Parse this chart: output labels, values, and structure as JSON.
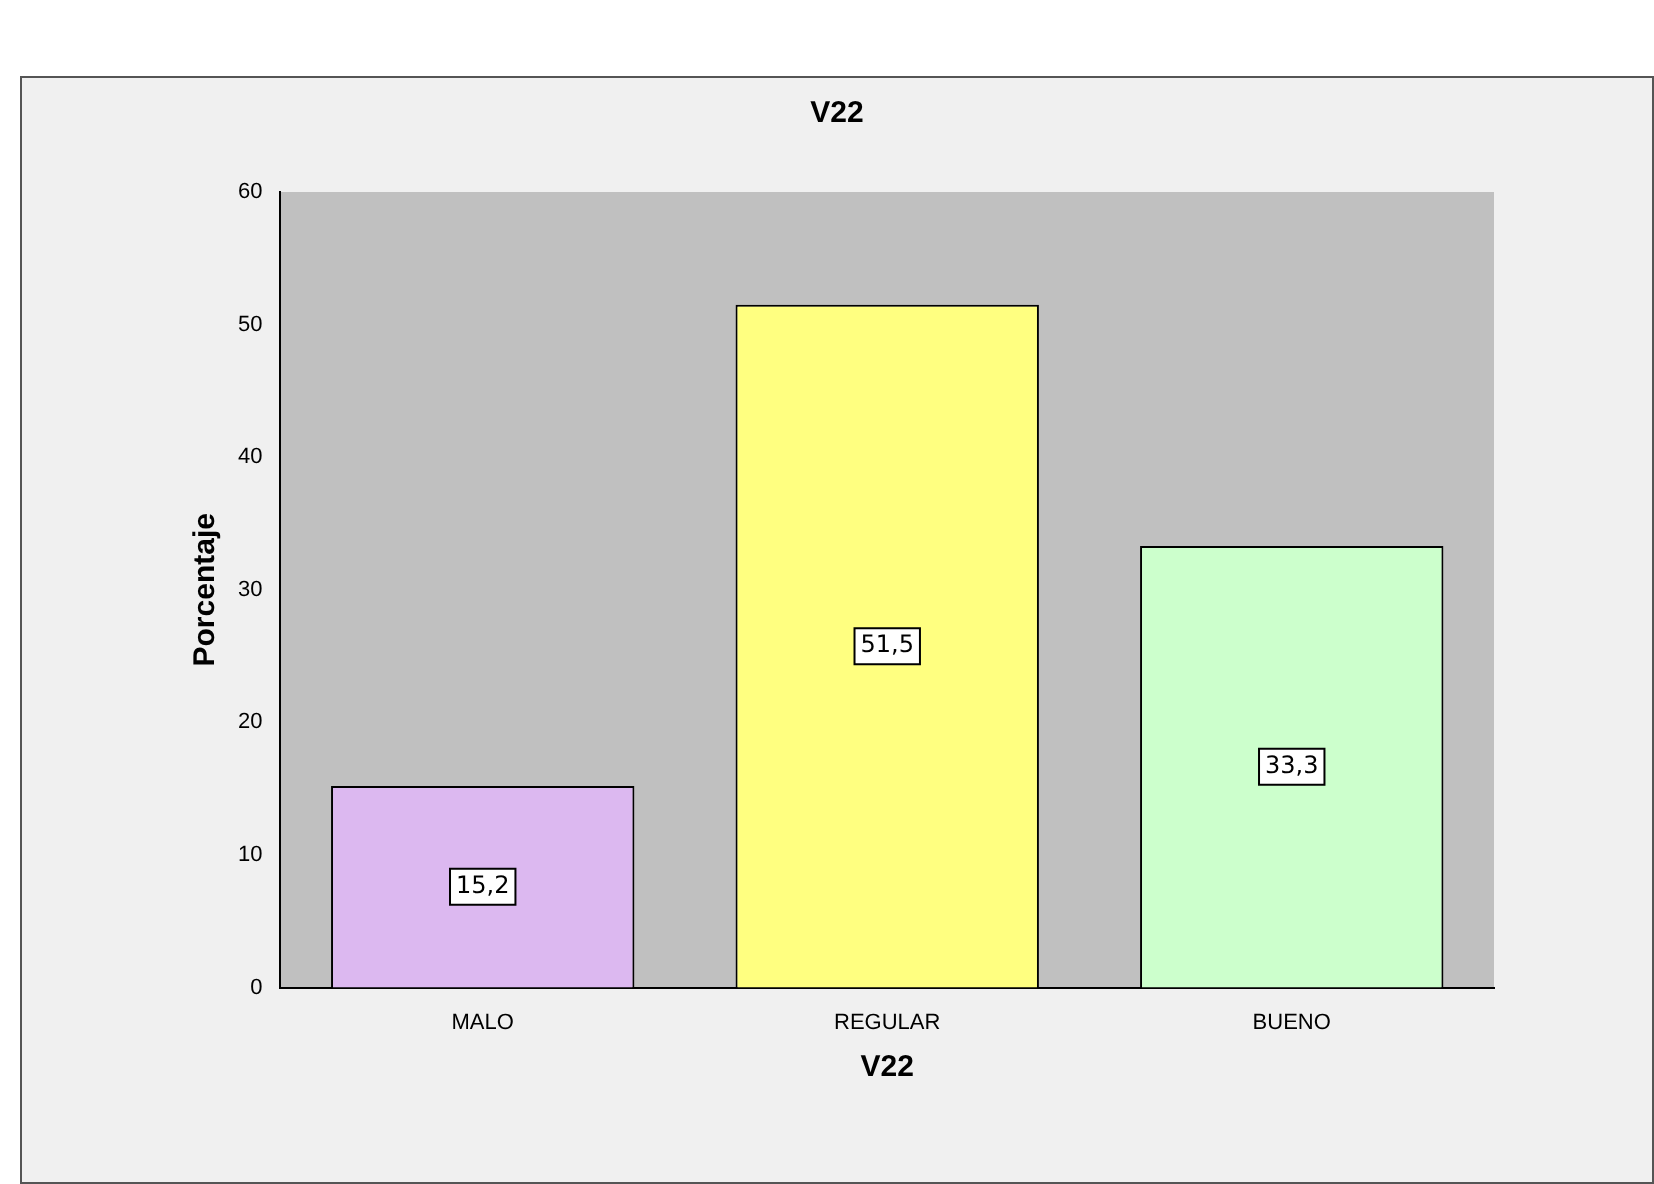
{
  "chart_data": {
    "type": "bar",
    "title": "V22",
    "xlabel": "V22",
    "ylabel": "Porcentaje",
    "categories": [
      "MALO",
      "REGULAR",
      "BUENO"
    ],
    "values": [
      15.2,
      51.5,
      33.3
    ],
    "colors": [
      "#dcb8f0",
      "#ffff80",
      "#ccffcc"
    ],
    "value_labels": [
      "15,2",
      "51,5",
      "33,3"
    ],
    "ylim": [
      0,
      60
    ],
    "yticks": [
      0,
      10,
      20,
      30,
      40,
      50,
      60
    ],
    "grid": false,
    "legend": false
  }
}
